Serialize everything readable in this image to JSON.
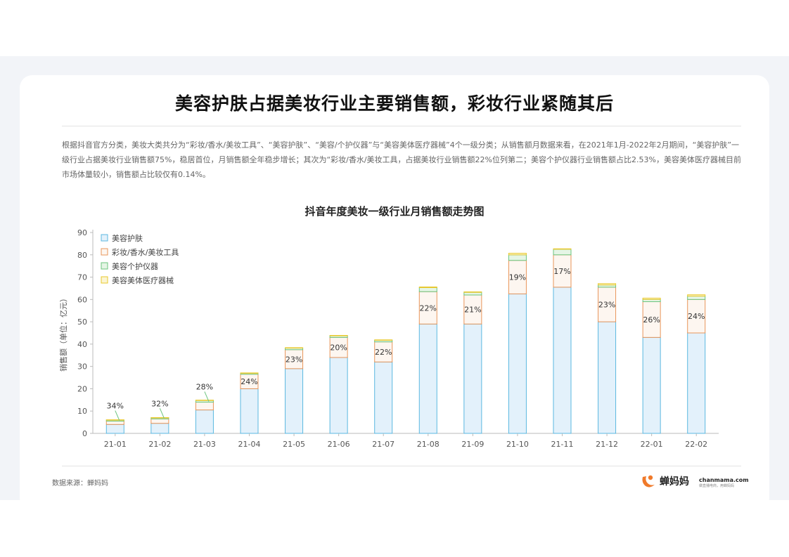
{
  "page": {
    "title": "美容护肤占据美妆行业主要销售额，彩妆行业紧随其后",
    "description": "根据抖音官方分类，美妆大类共分为“彩妆/香水/美妆工具”、“美容护肤”、“美容/个护仪器”与“美容美体医疗器械”4个一级分类；从销售额月数据来看，在2021年1月-2022年2月期间，“美容护肤”一级行业占据美妆行业销售额75%，稳居首位，月销售额全年稳步增长；其次为“彩妆/香水/美妆工具，占据美妆行业销售额22%位列第二；美容个护仪器行业销售额占比2.53%，美容美体医疗器械目前市场体量较小，销售额占比较仅有0.14%。",
    "source": "数据来源：蝉妈妈",
    "logo_text": "蝉妈妈",
    "logo_domain": "chanmama.com",
    "logo_tagline": "做直播电商，用蝉妈妈",
    "logo_icon": "chanmama-logo-icon"
  },
  "chart_data": {
    "type": "bar",
    "stacked": true,
    "title": "抖音年度美妆一级行业月销售额走势图",
    "xlabel": "",
    "ylabel": "销售额（单位：亿元）",
    "ylim": [
      0,
      90
    ],
    "yticks": [
      0,
      10,
      20,
      30,
      40,
      50,
      60,
      70,
      80,
      90
    ],
    "grid": false,
    "legend_position": "top-left",
    "categories": [
      "21-01",
      "21-02",
      "21-03",
      "21-04",
      "21-05",
      "21-06",
      "21-07",
      "21-08",
      "21-09",
      "21-10",
      "21-11",
      "21-12",
      "22-01",
      "22-02"
    ],
    "series": [
      {
        "name": "美容护肤",
        "stroke": "#5bb8e0",
        "fill": "#e3f1fb",
        "values": [
          4,
          4.5,
          10.5,
          20,
          29,
          34,
          32,
          49,
          49,
          62.5,
          65.5,
          50,
          43,
          45
        ]
      },
      {
        "name": "彩妆/香水/美妆工具",
        "stroke": "#e8955a",
        "fill": "#fdf6f0",
        "values": [
          1.5,
          2,
          3.5,
          6.5,
          8.5,
          9,
          9,
          14.5,
          13,
          15,
          14.5,
          15.5,
          16,
          15
        ]
      },
      {
        "name": "美容个护仪器",
        "stroke": "#6cc47e",
        "fill": "#e5f5e5",
        "values": [
          0.5,
          0.5,
          0.8,
          0.5,
          0.8,
          0.8,
          0.8,
          1.8,
          1.2,
          2.5,
          2.5,
          1,
          1,
          1.5
        ]
      },
      {
        "name": "美容美体医疗器械",
        "stroke": "#e8c92e",
        "fill": "#fbf5d3",
        "values": [
          0.1,
          0.1,
          0.1,
          0.1,
          0.1,
          0.1,
          0.1,
          0.3,
          0.2,
          0.7,
          0.2,
          0.6,
          0.6,
          0.6
        ]
      }
    ],
    "annotations": [
      "34%",
      "32%",
      "28%",
      "24%",
      "23%",
      "20%",
      "22%",
      "22%",
      "21%",
      "19%",
      "17%",
      "23%",
      "26%",
      "24%"
    ]
  }
}
